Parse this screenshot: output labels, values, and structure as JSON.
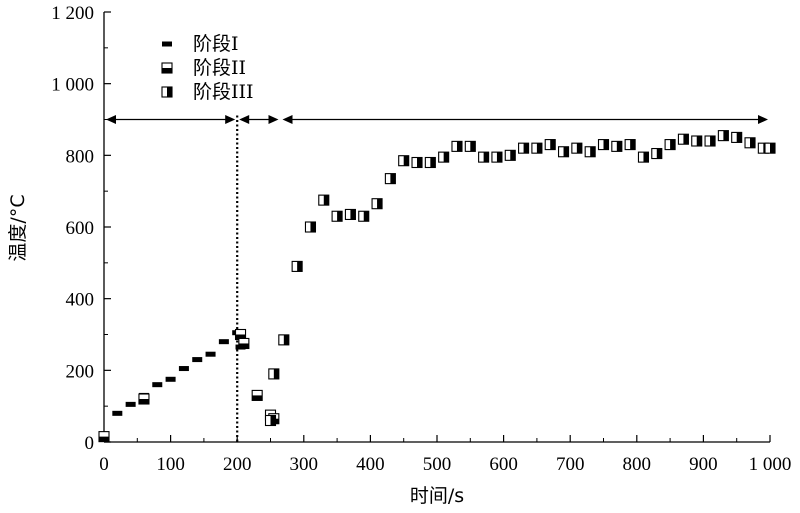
{
  "chart_data": {
    "type": "scatter",
    "xlabel": "时间/s",
    "ylabel": "温度/°C",
    "xlim": [
      0,
      1000
    ],
    "ylim": [
      0,
      1200
    ],
    "x_ticks": [
      0,
      100,
      200,
      300,
      400,
      500,
      600,
      700,
      800,
      900,
      1000
    ],
    "y_ticks": [
      0,
      200,
      400,
      600,
      800,
      1000,
      1200
    ],
    "x_tick_labels": [
      "0",
      "100",
      "200",
      "300",
      "400",
      "500",
      "600",
      "700",
      "800",
      "900",
      "1 000"
    ],
    "y_tick_labels": [
      "0",
      "200",
      "400",
      "600",
      "800",
      "1 000",
      "1 200"
    ],
    "legend_position": "top-left",
    "divider_x": 200,
    "arrows": [
      {
        "from": 0,
        "to": 200,
        "y": 900
      },
      {
        "from": 200,
        "to": 265,
        "y": 900
      },
      {
        "from": 265,
        "to": 1000,
        "y": 900
      }
    ],
    "series": [
      {
        "name": "阶段I",
        "marker": "dash",
        "points": [
          [
            0,
            20
          ],
          [
            20,
            80
          ],
          [
            40,
            105
          ],
          [
            60,
            130
          ],
          [
            80,
            160
          ],
          [
            100,
            175
          ],
          [
            120,
            205
          ],
          [
            140,
            230
          ],
          [
            160,
            245
          ],
          [
            180,
            280
          ],
          [
            200,
            305
          ],
          [
            205,
            265
          ]
        ]
      },
      {
        "name": "阶段II",
        "marker": "half-horizontal",
        "points": [
          [
            0,
            15
          ],
          [
            60,
            120
          ],
          [
            205,
            300
          ],
          [
            210,
            275
          ],
          [
            230,
            130
          ],
          [
            250,
            75
          ],
          [
            255,
            65
          ]
        ]
      },
      {
        "name": "阶段III",
        "marker": "half-vertical",
        "points": [
          [
            250,
            60
          ],
          [
            255,
            190
          ],
          [
            270,
            285
          ],
          [
            290,
            490
          ],
          [
            310,
            600
          ],
          [
            330,
            675
          ],
          [
            350,
            630
          ],
          [
            370,
            635
          ],
          [
            390,
            630
          ],
          [
            410,
            665
          ],
          [
            430,
            735
          ],
          [
            450,
            785
          ],
          [
            470,
            780
          ],
          [
            490,
            780
          ],
          [
            510,
            795
          ],
          [
            530,
            825
          ],
          [
            550,
            825
          ],
          [
            570,
            795
          ],
          [
            590,
            795
          ],
          [
            610,
            800
          ],
          [
            630,
            820
          ],
          [
            650,
            820
          ],
          [
            670,
            830
          ],
          [
            690,
            810
          ],
          [
            710,
            820
          ],
          [
            730,
            810
          ],
          [
            750,
            830
          ],
          [
            770,
            825
          ],
          [
            790,
            830
          ],
          [
            810,
            795
          ],
          [
            830,
            805
          ],
          [
            850,
            830
          ],
          [
            870,
            845
          ],
          [
            890,
            840
          ],
          [
            910,
            840
          ],
          [
            930,
            855
          ],
          [
            950,
            850
          ],
          [
            970,
            835
          ],
          [
            990,
            820
          ],
          [
            1000,
            820
          ]
        ]
      }
    ]
  }
}
